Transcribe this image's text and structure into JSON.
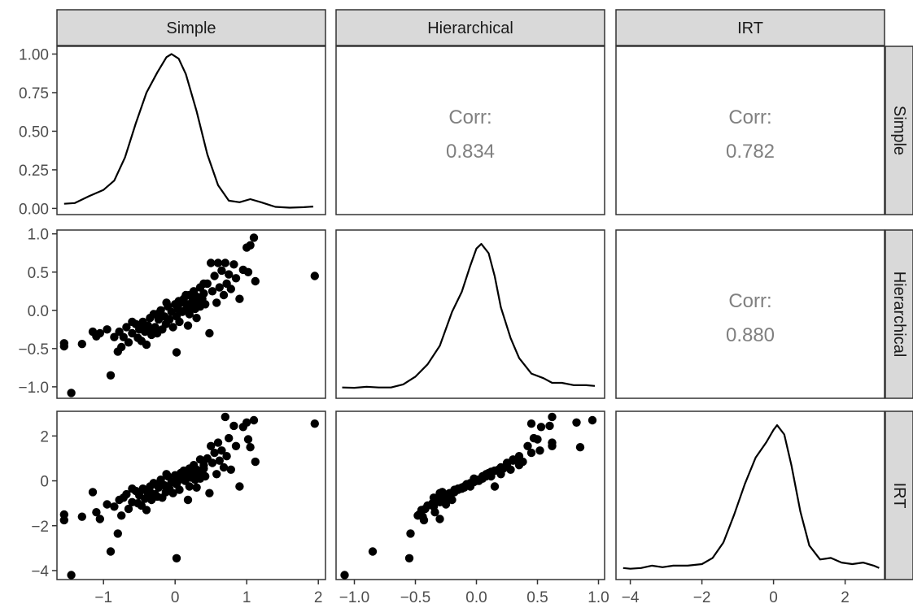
{
  "chart_data": {
    "type": "scatter",
    "title": "",
    "variables": [
      "Simple",
      "Hierarchical",
      "IRT"
    ],
    "grid": false,
    "corr_label": "Corr:",
    "correlations": [
      {
        "row": "Simple",
        "col": "Hierarchical",
        "value": "0.834"
      },
      {
        "row": "Simple",
        "col": "IRT",
        "value": "0.782"
      },
      {
        "row": "Hierarchical",
        "col": "IRT",
        "value": "0.880"
      }
    ],
    "axes": {
      "Simple": {
        "range": [
          -1.65,
          2.1
        ],
        "ticks": [
          -1,
          0,
          1,
          2
        ],
        "tick_labels": [
          "−1",
          "0",
          "1",
          "2"
        ]
      },
      "Hierarchical": {
        "range": [
          -1.15,
          1.05
        ],
        "ticks": [
          -1.0,
          -0.5,
          0.0,
          0.5,
          1.0
        ],
        "tick_labels": [
          "−1.0",
          "−0.5",
          "0.0",
          "0.5",
          "1.0"
        ]
      },
      "IRT": {
        "range": [
          -4.4,
          3.1
        ],
        "ticks": [
          -4,
          -2,
          0,
          2
        ],
        "tick_labels": [
          "−4",
          "−2",
          "0",
          "2"
        ]
      }
    },
    "density_axis": {
      "range": [
        -0.04,
        1.05
      ],
      "ticks": [
        0,
        0.25,
        0.5,
        0.75,
        1.0
      ],
      "tick_labels": [
        "0.00",
        "0.25",
        "0.50",
        "0.75",
        "1.00"
      ]
    },
    "densities": {
      "Simple": [
        [
          -1.55,
          0.03
        ],
        [
          -1.4,
          0.035
        ],
        [
          -1.2,
          0.08
        ],
        [
          -1.0,
          0.12
        ],
        [
          -0.85,
          0.18
        ],
        [
          -0.7,
          0.33
        ],
        [
          -0.55,
          0.55
        ],
        [
          -0.4,
          0.75
        ],
        [
          -0.25,
          0.88
        ],
        [
          -0.12,
          0.98
        ],
        [
          -0.05,
          1.0
        ],
        [
          0.05,
          0.97
        ],
        [
          0.15,
          0.87
        ],
        [
          0.3,
          0.63
        ],
        [
          0.45,
          0.35
        ],
        [
          0.6,
          0.15
        ],
        [
          0.75,
          0.05
        ],
        [
          0.9,
          0.04
        ],
        [
          1.05,
          0.06
        ],
        [
          1.2,
          0.04
        ],
        [
          1.4,
          0.01
        ],
        [
          1.6,
          0.005
        ],
        [
          1.8,
          0.008
        ],
        [
          1.93,
          0.012
        ]
      ],
      "Hierarchical": [
        [
          -1.1,
          0.03
        ],
        [
          -1.0,
          0.028
        ],
        [
          -0.9,
          0.035
        ],
        [
          -0.8,
          0.03
        ],
        [
          -0.7,
          0.03
        ],
        [
          -0.6,
          0.05
        ],
        [
          -0.5,
          0.1
        ],
        [
          -0.4,
          0.18
        ],
        [
          -0.3,
          0.3
        ],
        [
          -0.2,
          0.52
        ],
        [
          -0.12,
          0.65
        ],
        [
          -0.05,
          0.82
        ],
        [
          0.0,
          0.93
        ],
        [
          0.04,
          0.96
        ],
        [
          0.1,
          0.9
        ],
        [
          0.15,
          0.75
        ],
        [
          0.2,
          0.55
        ],
        [
          0.28,
          0.35
        ],
        [
          0.35,
          0.22
        ],
        [
          0.45,
          0.12
        ],
        [
          0.55,
          0.09
        ],
        [
          0.62,
          0.06
        ],
        [
          0.7,
          0.06
        ],
        [
          0.8,
          0.045
        ],
        [
          0.9,
          0.045
        ],
        [
          0.97,
          0.04
        ]
      ],
      "IRT": [
        [
          -4.2,
          0.035
        ],
        [
          -4.0,
          0.03
        ],
        [
          -3.7,
          0.035
        ],
        [
          -3.4,
          0.05
        ],
        [
          -3.1,
          0.04
        ],
        [
          -2.8,
          0.05
        ],
        [
          -2.4,
          0.05
        ],
        [
          -2.0,
          0.06
        ],
        [
          -1.7,
          0.1
        ],
        [
          -1.4,
          0.2
        ],
        [
          -1.1,
          0.38
        ],
        [
          -0.8,
          0.58
        ],
        [
          -0.5,
          0.75
        ],
        [
          -0.2,
          0.85
        ],
        [
          0.0,
          0.93
        ],
        [
          0.1,
          0.96
        ],
        [
          0.3,
          0.9
        ],
        [
          0.5,
          0.7
        ],
        [
          0.75,
          0.4
        ],
        [
          1.0,
          0.18
        ],
        [
          1.3,
          0.09
        ],
        [
          1.6,
          0.1
        ],
        [
          1.9,
          0.07
        ],
        [
          2.2,
          0.06
        ],
        [
          2.5,
          0.07
        ],
        [
          2.8,
          0.05
        ],
        [
          2.95,
          0.035
        ]
      ]
    },
    "observations": [
      [
        -1.55,
        -0.47,
        -1.5
      ],
      [
        -1.55,
        -0.43,
        -1.75
      ],
      [
        -1.45,
        -1.08,
        -4.2
      ],
      [
        -1.3,
        -0.44,
        -1.6
      ],
      [
        -1.15,
        -0.28,
        -0.5
      ],
      [
        -1.1,
        -0.34,
        -1.4
      ],
      [
        -1.05,
        -0.3,
        -1.7
      ],
      [
        -0.95,
        -0.25,
        -1.05
      ],
      [
        -0.9,
        -0.85,
        -3.15
      ],
      [
        -0.85,
        -0.35,
        -1.15
      ],
      [
        -0.8,
        -0.54,
        -2.35
      ],
      [
        -0.78,
        -0.28,
        -0.85
      ],
      [
        -0.75,
        -0.48,
        -1.55
      ],
      [
        -0.72,
        -0.35,
        -0.75
      ],
      [
        -0.68,
        -0.22,
        -0.6
      ],
      [
        -0.65,
        -0.42,
        -1.25
      ],
      [
        -0.6,
        -0.3,
        -0.95
      ],
      [
        -0.55,
        -0.18,
        -0.45
      ],
      [
        -0.52,
        -0.36,
        -1.0
      ],
      [
        -0.5,
        -0.25,
        -0.65
      ],
      [
        -0.47,
        -0.4,
        -1.1
      ],
      [
        -0.45,
        -0.15,
        -0.35
      ],
      [
        -0.42,
        -0.28,
        -0.8
      ],
      [
        -0.4,
        -0.45,
        -1.3
      ],
      [
        -0.38,
        -0.2,
        -0.55
      ],
      [
        -0.35,
        -0.1,
        -0.25
      ],
      [
        -0.33,
        -0.32,
        -0.85
      ],
      [
        -0.3,
        -0.05,
        -0.1
      ],
      [
        -0.28,
        -0.22,
        -0.6
      ],
      [
        -0.25,
        -0.3,
        -0.7
      ],
      [
        -0.23,
        -0.12,
        -0.3
      ],
      [
        -0.2,
        0.0,
        0.05
      ],
      [
        -0.18,
        -0.25,
        -0.75
      ],
      [
        -0.15,
        -0.08,
        -0.2
      ],
      [
        -0.13,
        -0.18,
        -0.5
      ],
      [
        -0.1,
        0.05,
        0.2
      ],
      [
        -0.08,
        -0.12,
        -0.35
      ],
      [
        -0.05,
        -0.02,
        -0.05
      ],
      [
        -0.03,
        -0.22,
        -0.55
      ],
      [
        0.0,
        0.08,
        0.25
      ],
      [
        0.02,
        -0.08,
        -0.15
      ],
      [
        0.04,
        0.02,
        0.0
      ],
      [
        0.06,
        -0.15,
        -0.4
      ],
      [
        0.08,
        0.1,
        0.35
      ],
      [
        0.1,
        -0.02,
        0.1
      ],
      [
        0.12,
        0.15,
        0.45
      ],
      [
        0.14,
        0.0,
        0.0
      ],
      [
        0.16,
        0.08,
        0.3
      ],
      [
        0.18,
        -0.2,
        -0.85
      ],
      [
        0.2,
        0.2,
        0.55
      ],
      [
        0.22,
        0.05,
        0.15
      ],
      [
        0.24,
        0.12,
        0.4
      ],
      [
        0.26,
        0.25,
        0.7
      ],
      [
        0.28,
        0.02,
        0.05
      ],
      [
        0.3,
        0.18,
        0.5
      ],
      [
        0.32,
        0.1,
        0.25
      ],
      [
        0.35,
        0.3,
        0.95
      ],
      [
        0.38,
        0.15,
        0.45
      ],
      [
        0.4,
        0.22,
        0.55
      ],
      [
        0.42,
        0.08,
        0.2
      ],
      [
        0.45,
        0.35,
        1.0
      ],
      [
        0.48,
        -0.3,
        -0.55
      ],
      [
        0.5,
        0.62,
        1.55
      ],
      [
        0.52,
        0.25,
        0.8
      ],
      [
        0.55,
        0.45,
        1.25
      ],
      [
        0.58,
        0.1,
        0.3
      ],
      [
        0.6,
        0.62,
        1.7
      ],
      [
        0.62,
        0.3,
        0.9
      ],
      [
        0.65,
        0.52,
        1.35
      ],
      [
        0.68,
        0.2,
        0.6
      ],
      [
        0.7,
        0.62,
        2.85
      ],
      [
        0.72,
        0.35,
        1.1
      ],
      [
        0.75,
        0.47,
        1.9
      ],
      [
        0.78,
        0.28,
        0.5
      ],
      [
        0.82,
        0.6,
        2.45
      ],
      [
        0.85,
        0.42,
        1.55
      ],
      [
        0.9,
        0.15,
        -0.25
      ],
      [
        0.95,
        0.53,
        2.4
      ],
      [
        1.0,
        0.82,
        2.6
      ],
      [
        1.02,
        0.5,
        1.85
      ],
      [
        1.05,
        0.85,
        1.5
      ],
      [
        1.1,
        0.95,
        2.7
      ],
      [
        1.12,
        0.38,
        0.85
      ],
      [
        1.95,
        0.45,
        2.55
      ],
      [
        0.02,
        -0.55,
        -3.45
      ],
      [
        -0.6,
        -0.15,
        -0.35
      ],
      [
        -0.25,
        -0.05,
        -0.2
      ],
      [
        0.15,
        0.2,
        0.3
      ],
      [
        -0.45,
        -0.18,
        -0.4
      ],
      [
        0.35,
        0.05,
        0.1
      ],
      [
        0.2,
        -0.05,
        -0.25
      ],
      [
        -0.12,
        0.1,
        0.3
      ],
      [
        0.05,
        0.12,
        0.2
      ],
      [
        0.3,
        -0.1,
        -0.3
      ],
      [
        -0.35,
        -0.28,
        -0.5
      ],
      [
        0.4,
        0.35,
        0.7
      ]
    ]
  }
}
